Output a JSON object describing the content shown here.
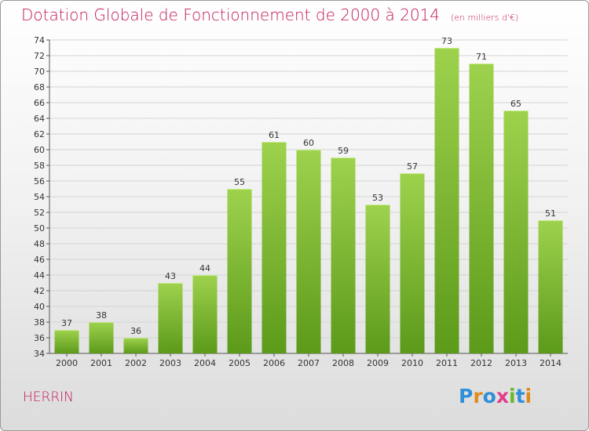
{
  "header": {
    "title": "Dotation Globale de Fonctionnement de 2000 à 2014",
    "subtitle": "(en milliers d'€)"
  },
  "footer": {
    "commune": "HERRIN",
    "logo_text": "Proxiti"
  },
  "colors": {
    "accent": "#c2185b",
    "bar_top": "#9ed24d",
    "bar_bottom": "#5c9a1a",
    "logo": [
      "#2f8fd8",
      "#e08a1e",
      "#2f8fd8",
      "#e23b8a",
      "#6bb82a",
      "#2f8fd8",
      "#e08a1e"
    ]
  },
  "chart_data": {
    "type": "bar",
    "title": "Dotation Globale de Fonctionnement de 2000 à 2014",
    "subtitle": "(en milliers d'€)",
    "categories": [
      "2000",
      "2001",
      "2002",
      "2003",
      "2004",
      "2005",
      "2006",
      "2007",
      "2008",
      "2009",
      "2010",
      "2011",
      "2012",
      "2013",
      "2014"
    ],
    "values": [
      37,
      38,
      36,
      43,
      44,
      55,
      61,
      60,
      59,
      53,
      57,
      73,
      71,
      65,
      51
    ],
    "ylim": [
      34,
      74
    ],
    "yticks": [
      34,
      36,
      38,
      40,
      42,
      44,
      46,
      48,
      50,
      52,
      54,
      56,
      58,
      60,
      62,
      64,
      66,
      68,
      70,
      72,
      74
    ],
    "grid": true,
    "xlabel": "",
    "ylabel": ""
  }
}
